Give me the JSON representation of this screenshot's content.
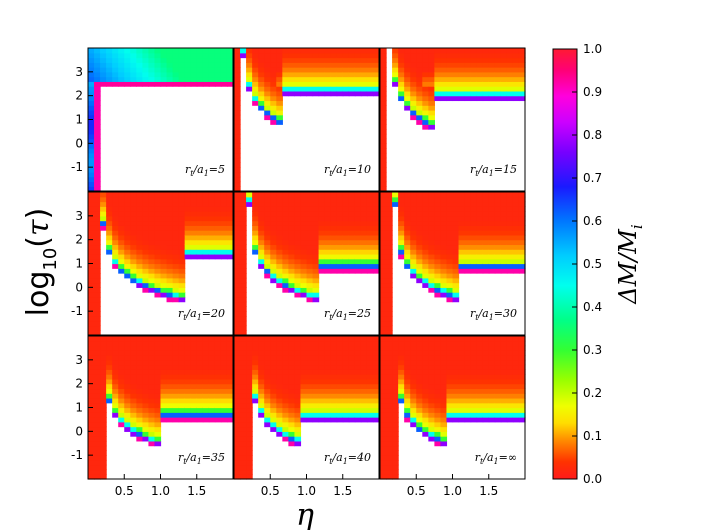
{
  "chart_data": {
    "type": "heatmap",
    "xlabel": "η",
    "ylabel": "log10(τ)",
    "colorbar_label": "ΔM/Mi",
    "x_tick_labels": [
      "0.5",
      "1.0",
      "1.5"
    ],
    "x_tick_values": [
      0.5,
      1.0,
      1.5
    ],
    "y_tick_labels": [
      "-1",
      "0",
      "1",
      "2",
      "3"
    ],
    "y_tick_values": [
      -1,
      0,
      1,
      2,
      3
    ],
    "xlim": [
      0.0,
      2.0
    ],
    "ylim": [
      -2.0,
      4.0
    ],
    "colorbar": {
      "range": [
        0.0,
        1.0
      ],
      "tick_labels": [
        "0.0",
        "0.1",
        "0.2",
        "0.3",
        "0.4",
        "0.5",
        "0.6",
        "0.7",
        "0.8",
        "0.9",
        "1.0"
      ],
      "colormap": "rainbow, red at 0.0 → yellow → green → cyan → blue → violet → magenta → red at 1.0"
    },
    "panels": [
      {
        "label": "r_t/a_1 = 5",
        "rt_a1": "5"
      },
      {
        "label": "r_t/a_1 = 10",
        "rt_a1": "10"
      },
      {
        "label": "r_t/a_1 = 15",
        "rt_a1": "15"
      },
      {
        "label": "r_t/a_1 = 20",
        "rt_a1": "20"
      },
      {
        "label": "r_t/a_1 = 25",
        "rt_a1": "25"
      },
      {
        "label": "r_t/a_1 = 30",
        "rt_a1": "30"
      },
      {
        "label": "r_t/a_1 = 35",
        "rt_a1": "35"
      },
      {
        "label": "r_t/a_1 = 40",
        "rt_a1": "40"
      },
      {
        "label": "r_t/a_1 = ∞",
        "rt_a1": "∞"
      }
    ],
    "panel_labels_text": {
      "prefix_r": "r",
      "sub_t": "t",
      "slash_a": "/a",
      "sub_1": "1",
      "eq": "="
    },
    "grid": false,
    "note_white": "white region = no data"
  }
}
